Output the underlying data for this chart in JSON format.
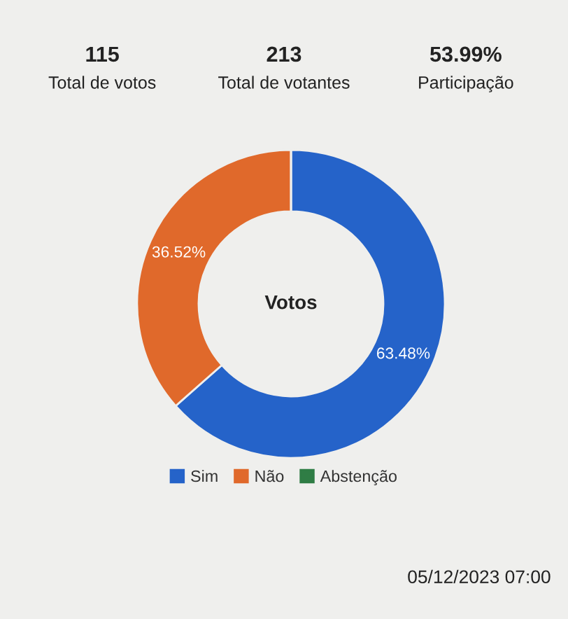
{
  "chart_data": {
    "type": "donut",
    "title": "Votos",
    "categories": [
      "Sim",
      "Não",
      "Abstenção"
    ],
    "values": [
      63.48,
      36.52,
      0
    ],
    "colors": [
      "#2563c9",
      "#e0692b",
      "#2f7d45"
    ],
    "value_labels": [
      "63.48%",
      "36.52%",
      null
    ],
    "legend": "bottom",
    "annotations": [
      "115",
      "Total de votos",
      "213",
      "Total de votantes",
      "53.99%",
      "Participação",
      "05/12/2023 07:00"
    ]
  }
}
